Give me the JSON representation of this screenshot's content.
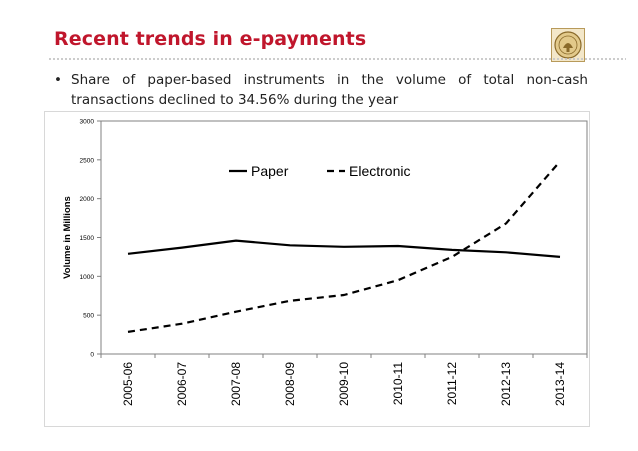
{
  "header": {
    "title": "Recent trends in e-payments",
    "logo_icon": "rbi-seal-icon"
  },
  "bullet": {
    "symbol": "•",
    "text": "Share of paper-based instruments in the volume of total non-cash transactions declined to 34.56% during the year"
  },
  "chart_data": {
    "type": "line",
    "title": "",
    "xlabel": "",
    "ylabel": "Volume in Millions",
    "ylim": [
      0,
      3000
    ],
    "yticks": [
      0,
      500,
      1000,
      1500,
      2000,
      2500,
      3000
    ],
    "categories": [
      "2005-06",
      "2006-07",
      "2007-08",
      "2008-09",
      "2009-10",
      "2010-11",
      "2011-12",
      "2012-13",
      "2013-14"
    ],
    "series": [
      {
        "name": "Paper",
        "style": "solid",
        "color": "#000000",
        "values": [
          1290,
          1370,
          1460,
          1400,
          1380,
          1390,
          1340,
          1310,
          1250
        ]
      },
      {
        "name": "Electronic",
        "style": "dashed",
        "color": "#000000",
        "values": [
          285,
          390,
          545,
          685,
          760,
          950,
          1250,
          1680,
          2480
        ]
      }
    ],
    "legend_position": "top-center",
    "grid": false
  }
}
